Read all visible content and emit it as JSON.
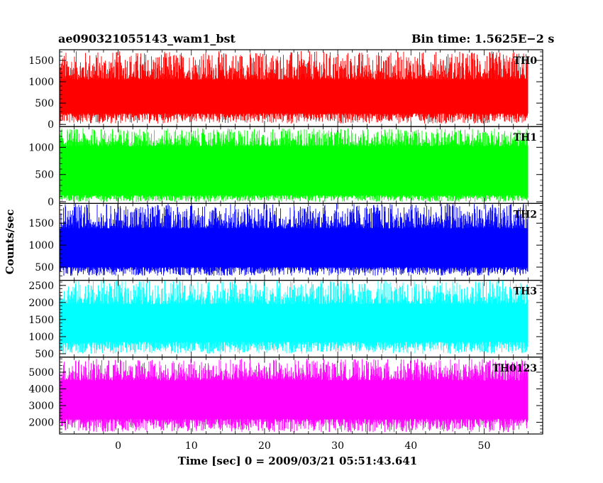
{
  "header": {
    "title": "ae090321055143_wam1_bst",
    "bin_time": "Bin time: 1.5625E−2 s"
  },
  "chart_data": {
    "type": "line",
    "title": "ae090321055143_wam1_bst",
    "xlabel": "Time [sec] 0 = 2009/03/21 05:51:43.641",
    "ylabel": "Counts/sec",
    "xlim": [
      -8,
      58
    ],
    "x_ticks": [
      0,
      10,
      20,
      30,
      40,
      50
    ],
    "x_range": [
      -8,
      56
    ],
    "grid": false,
    "panels": [
      {
        "name": "TH0",
        "color": "#ff0000",
        "ylim": [
          -50,
          1750
        ],
        "y_ticks": [
          0,
          500,
          1000,
          1500
        ],
        "band": [
          260,
          1050
        ],
        "spike_max": 1720,
        "spike_min": 20
      },
      {
        "name": "TH1",
        "color": "#00ff00",
        "ylim": [
          -30,
          1380
        ],
        "y_ticks": [
          0,
          500,
          1000
        ],
        "band": [
          120,
          1020
        ],
        "spike_max": 1350,
        "spike_min": 0
      },
      {
        "name": "TH2",
        "color": "#0000ff",
        "ylim": [
          200,
          1950
        ],
        "y_ticks": [
          500,
          1000,
          1500
        ],
        "band": [
          500,
          1380
        ],
        "spike_max": 1950,
        "spike_min": 300
      },
      {
        "name": "TH3",
        "color": "#00ffff",
        "ylim": [
          400,
          2650
        ],
        "y_ticks": [
          500,
          1000,
          1500,
          2000,
          2500
        ],
        "band": [
          850,
          1950
        ],
        "spike_max": 2650,
        "spike_min": 500
      },
      {
        "name": "TH0123",
        "color": "#ff00ff",
        "ylim": [
          1300,
          5900
        ],
        "y_ticks": [
          2000,
          3000,
          4000,
          5000
        ],
        "band": [
          2200,
          4500
        ],
        "spike_max": 5800,
        "spike_min": 1400
      }
    ]
  }
}
